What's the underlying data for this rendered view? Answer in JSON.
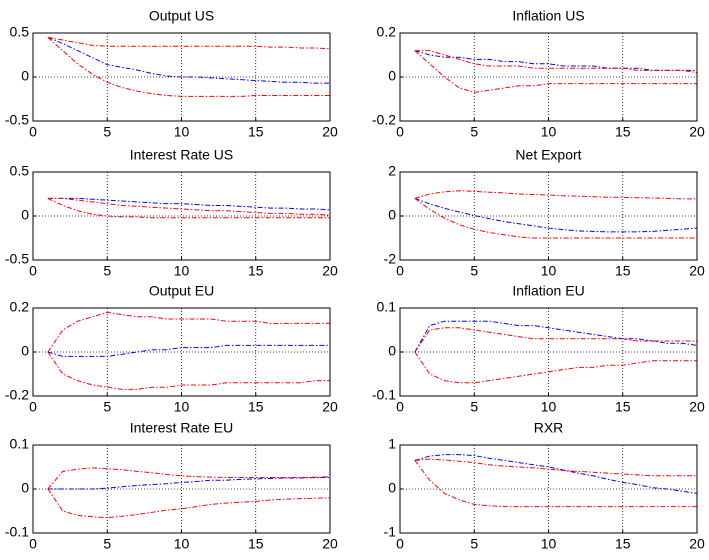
{
  "chart_data": [
    {
      "type": "line",
      "title": "Output US",
      "x": [
        1,
        2,
        3,
        4,
        5,
        6,
        7,
        8,
        9,
        10,
        11,
        12,
        13,
        14,
        15,
        16,
        17,
        18,
        19,
        20
      ],
      "series": [
        {
          "color": "#0000ff",
          "values": [
            0.45,
            0.38,
            0.3,
            0.22,
            0.14,
            0.11,
            0.08,
            0.04,
            0.01,
            0.0,
            0,
            -0.01,
            -0.02,
            -0.03,
            -0.04,
            -0.05,
            -0.06,
            -0.06,
            -0.07,
            -0.07
          ]
        },
        {
          "color": "#ff0000",
          "values": [
            0.45,
            0.42,
            0.39,
            0.36,
            0.35,
            0.35,
            0.35,
            0.35,
            0.35,
            0.35,
            0.35,
            0.35,
            0.35,
            0.35,
            0.35,
            0.34,
            0.34,
            0.33,
            0.33,
            0.32
          ]
        },
        {
          "color": "#ff0000",
          "values": [
            0.45,
            0.3,
            0.15,
            0.03,
            -0.06,
            -0.12,
            -0.16,
            -0.19,
            -0.21,
            -0.22,
            -0.22,
            -0.22,
            -0.22,
            -0.22,
            -0.21,
            -0.21,
            -0.21,
            -0.21,
            -0.21,
            -0.21
          ]
        }
      ],
      "xlim": [
        0,
        20
      ],
      "xticks": [
        0,
        5,
        10,
        15,
        20
      ],
      "ylim": [
        -0.5,
        0.5
      ],
      "yticks": [
        -0.5,
        0,
        0.5
      ],
      "grid": true
    },
    {
      "type": "line",
      "title": "Inflation US",
      "x": [
        1,
        2,
        3,
        4,
        5,
        6,
        7,
        8,
        9,
        10,
        11,
        12,
        13,
        14,
        15,
        16,
        17,
        18,
        19,
        20
      ],
      "series": [
        {
          "color": "#0000ff",
          "values": [
            0.12,
            0.1,
            0.09,
            0.09,
            0.08,
            0.08,
            0.07,
            0.07,
            0.06,
            0.06,
            0.05,
            0.05,
            0.05,
            0.04,
            0.04,
            0.04,
            0.03,
            0.03,
            0.03,
            0.03
          ]
        },
        {
          "color": "#ff0000",
          "values": [
            0.12,
            0.12,
            0.1,
            0.08,
            0.06,
            0.05,
            0.05,
            0.05,
            0.04,
            0.04,
            0.04,
            0.04,
            0.04,
            0.04,
            0.04,
            0.03,
            0.03,
            0.03,
            0.03,
            0.02
          ]
        },
        {
          "color": "#ff0000",
          "values": [
            0.12,
            0.06,
            0.0,
            -0.05,
            -0.07,
            -0.06,
            -0.05,
            -0.04,
            -0.04,
            -0.03,
            -0.03,
            -0.03,
            -0.03,
            -0.03,
            -0.03,
            -0.03,
            -0.03,
            -0.03,
            -0.03,
            -0.03
          ]
        }
      ],
      "xlim": [
        0,
        20
      ],
      "xticks": [
        0,
        5,
        10,
        15,
        20
      ],
      "ylim": [
        -0.2,
        0.2
      ],
      "yticks": [
        -0.2,
        0,
        0.2
      ],
      "grid": true
    },
    {
      "type": "line",
      "title": "Interest Rate US",
      "x": [
        1,
        2,
        3,
        4,
        5,
        6,
        7,
        8,
        9,
        10,
        11,
        12,
        13,
        14,
        15,
        16,
        17,
        18,
        19,
        20
      ],
      "series": [
        {
          "color": "#0000ff",
          "values": [
            0.2,
            0.2,
            0.2,
            0.19,
            0.18,
            0.17,
            0.16,
            0.15,
            0.14,
            0.14,
            0.13,
            0.12,
            0.12,
            0.11,
            0.1,
            0.09,
            0.09,
            0.08,
            0.08,
            0.07
          ]
        },
        {
          "color": "#ff0000",
          "values": [
            0.2,
            0.2,
            0.18,
            0.16,
            0.14,
            0.12,
            0.11,
            0.1,
            0.09,
            0.08,
            0.07,
            0.06,
            0.06,
            0.05,
            0.04,
            0.03,
            0.03,
            0.02,
            0.02,
            0.01
          ]
        },
        {
          "color": "#ff0000",
          "values": [
            0.2,
            0.12,
            0.06,
            0.02,
            0.0,
            -0.01,
            -0.01,
            -0.02,
            -0.02,
            -0.02,
            -0.02,
            -0.02,
            -0.02,
            -0.02,
            -0.02,
            -0.02,
            -0.02,
            -0.02,
            -0.02,
            -0.02
          ]
        }
      ],
      "xlim": [
        0,
        20
      ],
      "xticks": [
        0,
        5,
        10,
        15,
        20
      ],
      "ylim": [
        -0.5,
        0.5
      ],
      "yticks": [
        -0.5,
        0,
        0.5
      ],
      "grid": true
    },
    {
      "type": "line",
      "title": "Net Export",
      "x": [
        1,
        2,
        3,
        4,
        5,
        6,
        7,
        8,
        9,
        10,
        11,
        12,
        13,
        14,
        15,
        16,
        17,
        18,
        19,
        20
      ],
      "series": [
        {
          "color": "#0000ff",
          "values": [
            0.8,
            0.55,
            0.35,
            0.18,
            0.02,
            -0.12,
            -0.25,
            -0.35,
            -0.45,
            -0.55,
            -0.62,
            -0.68,
            -0.7,
            -0.72,
            -0.72,
            -0.72,
            -0.7,
            -0.65,
            -0.6,
            -0.55
          ]
        },
        {
          "color": "#ff0000",
          "values": [
            0.8,
            1.0,
            1.1,
            1.15,
            1.12,
            1.08,
            1.05,
            1.0,
            0.98,
            0.95,
            0.92,
            0.9,
            0.88,
            0.85,
            0.85,
            0.83,
            0.82,
            0.8,
            0.78,
            0.78
          ]
        },
        {
          "color": "#ff0000",
          "values": [
            0.8,
            0.3,
            -0.1,
            -0.4,
            -0.6,
            -0.75,
            -0.85,
            -0.95,
            -1.0,
            -1.0,
            -1.0,
            -1.0,
            -1.0,
            -1.0,
            -1.0,
            -1.0,
            -1.0,
            -1.0,
            -1.0,
            -1.0
          ]
        }
      ],
      "xlim": [
        0,
        20
      ],
      "xticks": [
        0,
        5,
        10,
        15,
        20
      ],
      "ylim": [
        -2,
        2
      ],
      "yticks": [
        -2,
        0,
        2
      ],
      "grid": true
    },
    {
      "type": "line",
      "title": "Output EU",
      "x": [
        1,
        2,
        3,
        4,
        5,
        6,
        7,
        8,
        9,
        10,
        11,
        12,
        13,
        14,
        15,
        16,
        17,
        18,
        19,
        20
      ],
      "series": [
        {
          "color": "#0000ff",
          "values": [
            0,
            -0.02,
            -0.02,
            -0.02,
            -0.02,
            -0.01,
            0,
            0.01,
            0.01,
            0.02,
            0.02,
            0.02,
            0.03,
            0.03,
            0.03,
            0.03,
            0.03,
            0.03,
            0.03,
            0.03
          ]
        },
        {
          "color": "#ff0000",
          "values": [
            0,
            0.1,
            0.14,
            0.16,
            0.18,
            0.17,
            0.16,
            0.16,
            0.15,
            0.15,
            0.15,
            0.15,
            0.14,
            0.14,
            0.14,
            0.13,
            0.13,
            0.13,
            0.13,
            0.13
          ]
        },
        {
          "color": "#ff0000",
          "values": [
            0,
            -0.1,
            -0.13,
            -0.15,
            -0.16,
            -0.17,
            -0.17,
            -0.16,
            -0.16,
            -0.15,
            -0.15,
            -0.15,
            -0.14,
            -0.14,
            -0.14,
            -0.14,
            -0.14,
            -0.14,
            -0.13,
            -0.13
          ]
        }
      ],
      "xlim": [
        0,
        20
      ],
      "xticks": [
        0,
        5,
        10,
        15,
        20
      ],
      "ylim": [
        -0.2,
        0.2
      ],
      "yticks": [
        -0.2,
        0,
        0.2
      ],
      "grid": true
    },
    {
      "type": "line",
      "title": "Inflation EU",
      "x": [
        1,
        2,
        3,
        4,
        5,
        6,
        7,
        8,
        9,
        10,
        11,
        12,
        13,
        14,
        15,
        16,
        17,
        18,
        19,
        20
      ],
      "series": [
        {
          "color": "#0000ff",
          "values": [
            0,
            0.06,
            0.07,
            0.07,
            0.07,
            0.07,
            0.065,
            0.06,
            0.06,
            0.055,
            0.05,
            0.045,
            0.04,
            0.035,
            0.03,
            0.03,
            0.025,
            0.02,
            0.02,
            0.015
          ]
        },
        {
          "color": "#ff0000",
          "values": [
            0,
            0.05,
            0.055,
            0.055,
            0.05,
            0.045,
            0.04,
            0.035,
            0.03,
            0.03,
            0.03,
            0.03,
            0.03,
            0.03,
            0.03,
            0.025,
            0.025,
            0.025,
            0.025,
            0.025
          ]
        },
        {
          "color": "#ff0000",
          "values": [
            0,
            -0.05,
            -0.065,
            -0.07,
            -0.07,
            -0.065,
            -0.06,
            -0.055,
            -0.05,
            -0.045,
            -0.04,
            -0.035,
            -0.035,
            -0.03,
            -0.03,
            -0.025,
            -0.02,
            -0.02,
            -0.02,
            -0.02
          ]
        }
      ],
      "xlim": [
        0,
        20
      ],
      "xticks": [
        0,
        5,
        10,
        15,
        20
      ],
      "ylim": [
        -0.1,
        0.1
      ],
      "yticks": [
        -0.1,
        0,
        0.1
      ],
      "grid": true
    },
    {
      "type": "line",
      "title": "Interest Rate EU",
      "x": [
        1,
        2,
        3,
        4,
        5,
        6,
        7,
        8,
        9,
        10,
        11,
        12,
        13,
        14,
        15,
        16,
        17,
        18,
        19,
        20
      ],
      "series": [
        {
          "color": "#0000ff",
          "values": [
            0,
            0,
            0,
            0,
            0.002,
            0.005,
            0.008,
            0.01,
            0.012,
            0.015,
            0.017,
            0.02,
            0.02,
            0.022,
            0.023,
            0.024,
            0.025,
            0.025,
            0.026,
            0.026
          ]
        },
        {
          "color": "#ff0000",
          "values": [
            0,
            0.04,
            0.045,
            0.048,
            0.046,
            0.044,
            0.04,
            0.037,
            0.033,
            0.03,
            0.028,
            0.027,
            0.026,
            0.026,
            0.026,
            0.026,
            0.026,
            0.026,
            0.027,
            0.028
          ]
        },
        {
          "color": "#ff0000",
          "values": [
            0,
            -0.05,
            -0.06,
            -0.063,
            -0.065,
            -0.062,
            -0.058,
            -0.053,
            -0.048,
            -0.045,
            -0.04,
            -0.035,
            -0.032,
            -0.03,
            -0.028,
            -0.025,
            -0.023,
            -0.022,
            -0.021,
            -0.02
          ]
        }
      ],
      "xlim": [
        0,
        20
      ],
      "xticks": [
        0,
        5,
        10,
        15,
        20
      ],
      "ylim": [
        -0.1,
        0.1
      ],
      "yticks": [
        -0.1,
        0,
        0.1
      ],
      "grid": true
    },
    {
      "type": "line",
      "title": "RXR",
      "x": [
        1,
        2,
        3,
        4,
        5,
        6,
        7,
        8,
        9,
        10,
        11,
        12,
        13,
        14,
        15,
        16,
        17,
        18,
        19,
        20
      ],
      "series": [
        {
          "color": "#0000ff",
          "values": [
            0.65,
            0.75,
            0.78,
            0.78,
            0.76,
            0.7,
            0.65,
            0.6,
            0.55,
            0.5,
            0.43,
            0.36,
            0.3,
            0.22,
            0.15,
            0.1,
            0.03,
            0.0,
            -0.05,
            -0.1
          ]
        },
        {
          "color": "#ff0000",
          "values": [
            0.65,
            0.68,
            0.66,
            0.63,
            0.6,
            0.55,
            0.52,
            0.5,
            0.48,
            0.45,
            0.42,
            0.4,
            0.38,
            0.36,
            0.34,
            0.32,
            0.3,
            0.3,
            0.3,
            0.3
          ]
        },
        {
          "color": "#ff0000",
          "values": [
            0.65,
            0.2,
            -0.1,
            -0.25,
            -0.35,
            -0.38,
            -0.4,
            -0.4,
            -0.4,
            -0.4,
            -0.4,
            -0.4,
            -0.4,
            -0.4,
            -0.4,
            -0.4,
            -0.4,
            -0.4,
            -0.4,
            -0.4
          ]
        }
      ],
      "xlim": [
        0,
        20
      ],
      "xticks": [
        0,
        5,
        10,
        15,
        20
      ],
      "ylim": [
        -1,
        1
      ],
      "yticks": [
        -1,
        0,
        1
      ],
      "grid": true
    }
  ]
}
